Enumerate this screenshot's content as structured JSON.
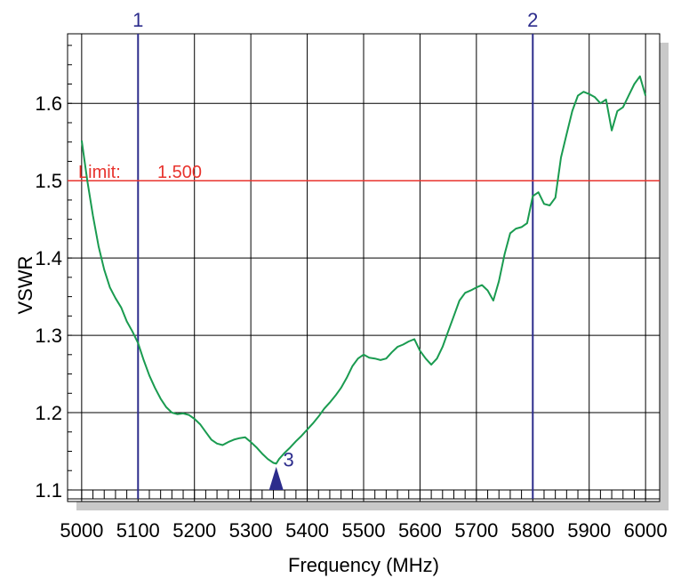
{
  "chart_data": {
    "type": "line",
    "title": "",
    "xlabel": "Frequency (MHz)",
    "ylabel": "VSWR",
    "xlim": [
      4975,
      6025
    ],
    "ylim": [
      1.085,
      1.69
    ],
    "x_ticks": [
      5000,
      5100,
      5200,
      5300,
      5400,
      5500,
      5600,
      5700,
      5800,
      5900,
      6000
    ],
    "x_tick_labels": [
      "5000",
      "5100",
      "5200",
      "5300",
      "5400",
      "5500",
      "5600",
      "5700",
      "5800",
      "5900",
      "6000"
    ],
    "y_ticks": [
      1.1,
      1.2,
      1.3,
      1.4,
      1.5,
      1.6
    ],
    "y_tick_labels": [
      "1.1",
      "1.2",
      "1.3",
      "1.4",
      "1.5",
      "1.6"
    ],
    "grid": true,
    "limit": {
      "label": "Limit:",
      "value_text": "1.500",
      "value": 1.5,
      "color": "#e8332d"
    },
    "markers": [
      {
        "label": "1",
        "x": 5100,
        "kind": "vertical-line"
      },
      {
        "label": "2",
        "x": 5800,
        "kind": "vertical-line"
      },
      {
        "label": "3",
        "x": 5345,
        "y": 1.135,
        "kind": "triangle"
      }
    ],
    "series": [
      {
        "color": "#1a9b50",
        "x": [
          5000,
          5010,
          5020,
          5030,
          5040,
          5050,
          5060,
          5070,
          5080,
          5090,
          5100,
          5110,
          5120,
          5130,
          5140,
          5150,
          5160,
          5170,
          5180,
          5190,
          5200,
          5210,
          5220,
          5230,
          5240,
          5250,
          5260,
          5270,
          5280,
          5290,
          5300,
          5310,
          5320,
          5330,
          5340,
          5345,
          5350,
          5360,
          5370,
          5380,
          5390,
          5400,
          5410,
          5420,
          5430,
          5440,
          5450,
          5460,
          5470,
          5480,
          5490,
          5500,
          5510,
          5520,
          5530,
          5540,
          5550,
          5560,
          5570,
          5580,
          5590,
          5600,
          5610,
          5620,
          5630,
          5640,
          5650,
          5660,
          5670,
          5680,
          5690,
          5700,
          5710,
          5720,
          5730,
          5740,
          5750,
          5760,
          5770,
          5780,
          5790,
          5800,
          5810,
          5820,
          5830,
          5840,
          5850,
          5860,
          5870,
          5880,
          5890,
          5900,
          5910,
          5920,
          5930,
          5940,
          5950,
          5960,
          5970,
          5980,
          5990,
          6000
        ],
        "values": [
          1.552,
          1.5,
          1.455,
          1.415,
          1.385,
          1.362,
          1.348,
          1.336,
          1.318,
          1.305,
          1.29,
          1.268,
          1.248,
          1.232,
          1.218,
          1.207,
          1.2,
          1.198,
          1.199,
          1.197,
          1.192,
          1.185,
          1.175,
          1.165,
          1.16,
          1.158,
          1.162,
          1.165,
          1.167,
          1.168,
          1.162,
          1.155,
          1.147,
          1.14,
          1.135,
          1.134,
          1.14,
          1.148,
          1.155,
          1.163,
          1.17,
          1.178,
          1.186,
          1.195,
          1.205,
          1.213,
          1.222,
          1.232,
          1.245,
          1.26,
          1.27,
          1.275,
          1.271,
          1.27,
          1.268,
          1.27,
          1.278,
          1.285,
          1.288,
          1.292,
          1.295,
          1.28,
          1.27,
          1.262,
          1.27,
          1.285,
          1.305,
          1.325,
          1.345,
          1.355,
          1.358,
          1.362,
          1.365,
          1.358,
          1.345,
          1.37,
          1.405,
          1.432,
          1.438,
          1.44,
          1.445,
          1.48,
          1.485,
          1.47,
          1.468,
          1.478,
          1.53,
          1.56,
          1.59,
          1.61,
          1.615,
          1.612,
          1.608,
          1.6,
          1.605,
          1.565,
          1.59,
          1.595,
          1.61,
          1.625,
          1.635,
          1.61
        ]
      }
    ]
  }
}
